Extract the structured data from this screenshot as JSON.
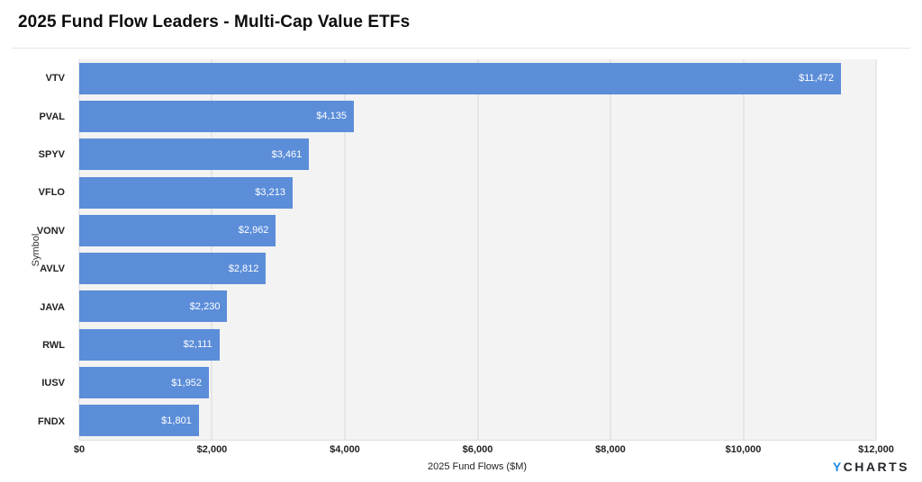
{
  "header": {
    "title": "2025 Fund Flow Leaders - Multi-Cap Value ETFs"
  },
  "chart_data": {
    "type": "bar",
    "orientation": "horizontal",
    "title": "2025 Fund Flow Leaders - Multi-Cap Value ETFs",
    "categories": [
      "VTV",
      "PVAL",
      "SPYV",
      "VFLO",
      "VONV",
      "AVLV",
      "JAVA",
      "RWL",
      "IUSV",
      "FNDX"
    ],
    "values": [
      11472,
      4135,
      3461,
      3213,
      2962,
      2812,
      2230,
      2111,
      1952,
      1801
    ],
    "value_labels": [
      "$11,472",
      "$4,135",
      "$3,461",
      "$3,213",
      "$2,962",
      "$2,812",
      "$2,230",
      "$2,111",
      "$1,952",
      "$1,801"
    ],
    "xlabel": "2025 Fund Flows ($M)",
    "ylabel": "Symbol",
    "xlim": [
      0,
      12000
    ],
    "x_ticks": [
      "$0",
      "$2,000",
      "$4,000",
      "$6,000",
      "$8,000",
      "$10,000",
      "$12,000"
    ],
    "x_tick_values": [
      0,
      2000,
      4000,
      6000,
      8000,
      10000,
      12000
    ],
    "grid": true,
    "legend": "none",
    "colors": {
      "bar": "#5b8dd9",
      "plot_background": "#f2f3f2",
      "gridline": "#d9d9d9",
      "value_label": "#ffffff"
    }
  },
  "footer": {
    "logo_y": "Y",
    "logo_charts": "CHARTS"
  }
}
